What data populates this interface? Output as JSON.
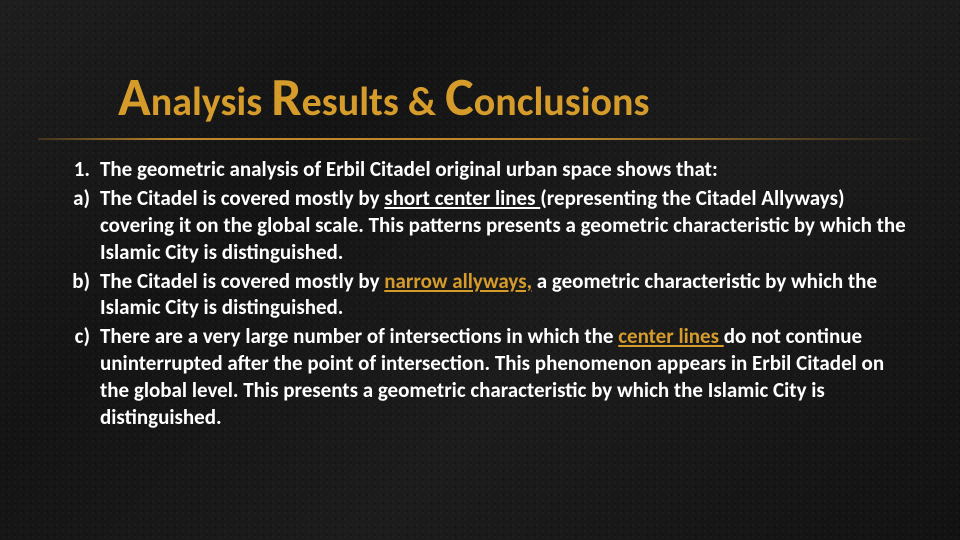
{
  "slide": {
    "background_color": "#1a1a1a",
    "title": "Analysis Results & Conclusions",
    "title_parts": {
      "w1": {
        "cap": "A",
        "rest": "nalysis"
      },
      "w2": {
        "cap": "R",
        "rest": "esults"
      },
      "amp": "&",
      "w3": {
        "cap": "C",
        "rest": "onclusions"
      }
    },
    "title_color": "#d59b2b",
    "title_fontsize_pt": 30,
    "rule_color": "#d0942c",
    "body_color": "#ffffff",
    "accent_color": "#d59b2b",
    "body_fontsize_pt": 21,
    "items": [
      {
        "marker": "1.",
        "text_pre": "The geometric analysis of Erbil Citadel original urban space shows that:",
        "u1": "",
        "text_mid": "",
        "u2": "",
        "text_post": ""
      },
      {
        "marker": "a)",
        "text_pre": "The Citadel is covered mostly by ",
        "u1": "short center lines ",
        "text_mid": "(representing the Citadel Allyways) covering it on the global scale. This patterns presents a geometric characteristic by which the Islamic City is distinguished.",
        "u2": "",
        "text_post": ""
      },
      {
        "marker": "b)",
        "text_pre": "The Citadel is covered mostly by ",
        "u1": "narrow allyways,",
        "text_mid": " a geometric characteristic by which the Islamic City is distinguished.",
        "u2": "",
        "text_post": "",
        "u1_accent": true
      },
      {
        "marker": "c)",
        "text_pre": "There are a very large number of intersections in which the ",
        "u1": "center lines ",
        "text_mid": "do not continue uninterrupted after the point of intersection. This phenomenon appears in Erbil Citadel on the global level. This presents a geometric characteristic by which the Islamic City is distinguished.",
        "u2": "",
        "text_post": "",
        "u1_accent": true
      }
    ]
  }
}
